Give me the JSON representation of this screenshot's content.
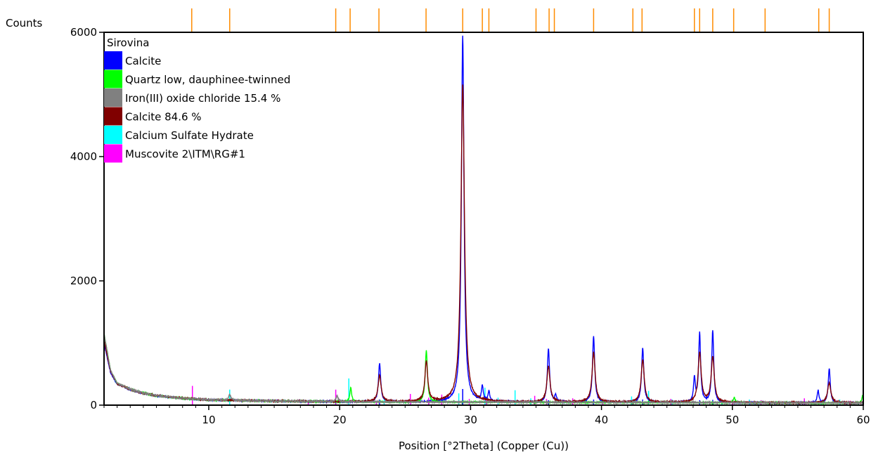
{
  "chart_data": {
    "type": "line",
    "ylabel": "Counts",
    "xlabel": "Position [°2Theta] (Copper (Cu))",
    "xlim": [
      2,
      60
    ],
    "ylim": [
      0,
      6000
    ],
    "x_ticks": [
      10,
      20,
      30,
      40,
      50,
      60
    ],
    "y_ticks": [
      0,
      2000,
      4000,
      6000
    ],
    "legend": {
      "placement": "top-left",
      "title": "Sirovina",
      "entries": [
        {
          "name": "Calcite",
          "color": "#0000ff"
        },
        {
          "name": "Quartz low, dauphinee-twinned",
          "color": "#00ff00"
        },
        {
          "name": "Iron(III) oxide chloride 15.4 %",
          "color": "#808080"
        },
        {
          "name": "Calcite 84.6 %",
          "color": "#800000"
        },
        {
          "name": "Calcium Sulfate Hydrate",
          "color": "#00ffff"
        },
        {
          "name": "Muscovite 2\\ITM\\RG#1",
          "color": "#ff00ff"
        }
      ]
    },
    "reference_marks": {
      "color": "#ff8c00",
      "positions": [
        8.7,
        11.6,
        19.7,
        20.8,
        23.0,
        26.6,
        29.4,
        30.9,
        31.4,
        35.0,
        36.0,
        36.4,
        39.4,
        42.4,
        43.1,
        47.1,
        47.5,
        48.5,
        50.1,
        52.5,
        56.6,
        57.4
      ]
    },
    "series": [
      {
        "name": "Calcite",
        "color": "#0000ff",
        "baseline": [
          [
            2,
            1000
          ],
          [
            2.5,
            520
          ],
          [
            3,
            340
          ],
          [
            4,
            250
          ],
          [
            5,
            190
          ],
          [
            6,
            150
          ],
          [
            8,
            110
          ],
          [
            10,
            85
          ],
          [
            15,
            65
          ],
          [
            20,
            55
          ],
          [
            25,
            50
          ],
          [
            30,
            50
          ],
          [
            40,
            45
          ],
          [
            50,
            40
          ],
          [
            60,
            35
          ]
        ],
        "peaks": [
          [
            23.05,
            620,
            0.1
          ],
          [
            29.4,
            5900,
            0.12
          ],
          [
            30.9,
            240,
            0.08
          ],
          [
            31.4,
            160,
            0.08
          ],
          [
            35.95,
            850,
            0.1
          ],
          [
            36.5,
            110,
            0.08
          ],
          [
            39.4,
            1060,
            0.1
          ],
          [
            43.15,
            880,
            0.1
          ],
          [
            47.1,
            380,
            0.08
          ],
          [
            47.5,
            1110,
            0.09
          ],
          [
            48.5,
            1160,
            0.09
          ],
          [
            56.55,
            200,
            0.08
          ],
          [
            57.4,
            560,
            0.09
          ]
        ]
      },
      {
        "name": "Quartz low, dauphinee-twinned",
        "color": "#00ff00",
        "baseline": [
          [
            2,
            1150
          ],
          [
            2.5,
            560
          ],
          [
            3,
            350
          ],
          [
            4,
            255
          ],
          [
            5,
            195
          ],
          [
            6,
            150
          ],
          [
            8,
            110
          ],
          [
            10,
            85
          ],
          [
            15,
            65
          ],
          [
            20,
            55
          ],
          [
            25,
            50
          ],
          [
            30,
            50
          ],
          [
            40,
            45
          ],
          [
            50,
            40
          ],
          [
            60,
            35
          ]
        ],
        "peaks": [
          [
            20.85,
            230,
            0.08
          ],
          [
            26.62,
            830,
            0.1
          ],
          [
            50.15,
            80,
            0.08
          ],
          [
            59.95,
            120,
            0.08
          ]
        ]
      },
      {
        "name": "Calcite 84.6 %",
        "color": "#800000",
        "baseline": [
          [
            2,
            1050
          ],
          [
            2.5,
            540
          ],
          [
            3,
            345
          ],
          [
            4,
            252
          ],
          [
            5,
            192
          ],
          [
            6,
            152
          ],
          [
            8,
            112
          ],
          [
            10,
            86
          ],
          [
            15,
            66
          ],
          [
            20,
            56
          ],
          [
            25,
            51
          ],
          [
            30,
            51
          ],
          [
            40,
            46
          ],
          [
            50,
            41
          ],
          [
            60,
            36
          ]
        ],
        "peaks": [
          [
            23.05,
            420,
            0.14
          ],
          [
            26.62,
            650,
            0.13
          ],
          [
            29.4,
            5100,
            0.16
          ],
          [
            35.95,
            580,
            0.14
          ],
          [
            39.4,
            800,
            0.14
          ],
          [
            43.15,
            680,
            0.14
          ],
          [
            47.5,
            800,
            0.14
          ],
          [
            48.5,
            730,
            0.14
          ],
          [
            57.4,
            320,
            0.15
          ]
        ]
      },
      {
        "name": "Iron(III) oxide chloride 15.4 %",
        "color": "#808080",
        "baseline": [
          [
            2,
            1150
          ],
          [
            2.5,
            560
          ],
          [
            3,
            355
          ],
          [
            4,
            258
          ],
          [
            5,
            196
          ],
          [
            6,
            153
          ],
          [
            8,
            112
          ],
          [
            10,
            86
          ],
          [
            15,
            66
          ],
          [
            20,
            56
          ],
          [
            25,
            51
          ],
          [
            30,
            51
          ],
          [
            40,
            46
          ],
          [
            50,
            41
          ],
          [
            60,
            36
          ]
        ],
        "peaks": [
          [
            11.6,
            90,
            0.1
          ],
          [
            19.8,
            90,
            0.1
          ]
        ]
      }
    ],
    "stick_patterns": [
      {
        "name": "Calcium Sulfate Hydrate",
        "color": "#00ffff",
        "sticks": [
          [
            11.6,
            250
          ],
          [
            20.7,
            430
          ],
          [
            23.4,
            110
          ],
          [
            29.1,
            190
          ],
          [
            31.1,
            280
          ],
          [
            32.1,
            120
          ],
          [
            33.4,
            240
          ],
          [
            34.6,
            110
          ],
          [
            42.3,
            140
          ],
          [
            43.6,
            230
          ],
          [
            45.4,
            90
          ],
          [
            49.2,
            80
          ],
          [
            51.3,
            90
          ],
          [
            56.8,
            70
          ],
          [
            58.2,
            90
          ]
        ]
      },
      {
        "name": "Muscovite 2\\ITM\\RG#1",
        "color": "#ff00ff",
        "sticks": [
          [
            8.75,
            310
          ],
          [
            17.6,
            70
          ],
          [
            19.7,
            250
          ],
          [
            22.8,
            70
          ],
          [
            25.4,
            180
          ],
          [
            26.8,
            120
          ],
          [
            27.8,
            170
          ],
          [
            29.9,
            100
          ],
          [
            31.2,
            90
          ],
          [
            34.9,
            150
          ],
          [
            35.8,
            100
          ],
          [
            37.8,
            110
          ],
          [
            40.1,
            80
          ],
          [
            42.4,
            90
          ],
          [
            45.3,
            100
          ],
          [
            50.0,
            90
          ],
          [
            52.2,
            80
          ],
          [
            55.5,
            110
          ],
          [
            59.0,
            70
          ]
        ]
      },
      {
        "name": "Calcite",
        "color": "#0000ff",
        "sticks": [
          [
            23.05,
            90
          ],
          [
            29.4,
            260
          ],
          [
            35.95,
            80
          ],
          [
            39.4,
            90
          ],
          [
            43.15,
            90
          ],
          [
            47.5,
            80
          ],
          [
            48.5,
            85
          ]
        ]
      }
    ]
  }
}
